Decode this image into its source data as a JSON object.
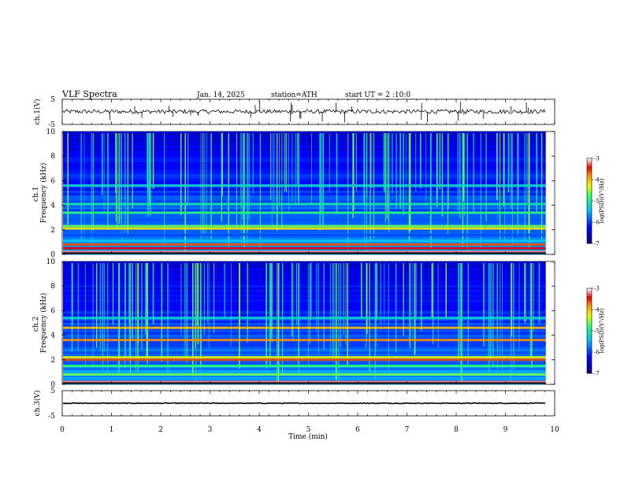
{
  "header": {
    "title": "VLF  Spectra",
    "date": "Jan. 14, 2025",
    "station": "station=ATH",
    "start": "start  UT  =   2  :10:0"
  },
  "chart_data": [
    {
      "type": "line",
      "name": "ch1-waveform",
      "ylabel": "ch.1(V)",
      "ylim": [
        -5,
        5
      ],
      "yticks": [
        "5",
        "-5"
      ],
      "xlim": [
        0,
        10
      ],
      "mean": 0.1,
      "noise_amplitude": 0.8,
      "spike_count": 30,
      "color": "#000000"
    },
    {
      "type": "heatmap",
      "name": "ch1-spectrogram",
      "ylabel": "ch.1\nFrequency  (kHz)",
      "ylim": [
        0,
        10
      ],
      "yticks": [
        "0",
        "2",
        "4",
        "6",
        "8",
        "10"
      ],
      "xlim": [
        0,
        10
      ],
      "data_end_min": 9.82,
      "colorbar": {
        "label": "log(PSD)(V²/Hz)",
        "range": [
          -7,
          -3
        ],
        "ticks": [
          "-3",
          "-4",
          "-5",
          "-6",
          "-7"
        ]
      },
      "bands_khz": [
        {
          "f": 0.2,
          "level": 0.95
        },
        {
          "f": 0.5,
          "level": 0.9
        },
        {
          "f": 0.8,
          "level": 0.85
        },
        {
          "f": 1.1,
          "level": 0.4
        },
        {
          "f": 1.6,
          "level": 0.25
        },
        {
          "f": 2.1,
          "level": 0.7
        },
        {
          "f": 2.3,
          "level": 0.6
        },
        {
          "f": 3.4,
          "level": 0.55
        },
        {
          "f": 4.1,
          "level": 0.5
        },
        {
          "f": 5.6,
          "level": 0.45
        }
      ]
    },
    {
      "type": "heatmap",
      "name": "ch2-spectrogram",
      "ylabel": "ch.2\nFrequency  (kHz)",
      "ylim": [
        0,
        10
      ],
      "yticks": [
        "0",
        "2",
        "4",
        "6",
        "8",
        "10"
      ],
      "xlim": [
        0,
        10
      ],
      "data_end_min": 9.82,
      "colorbar": {
        "label": "log(PSD)(V²/Hz)",
        "range": [
          -7,
          -3
        ],
        "ticks": [
          "-3",
          "-4",
          "-5",
          "-6",
          "-7"
        ]
      },
      "bands_khz": [
        {
          "f": 0.2,
          "level": 0.95
        },
        {
          "f": 0.8,
          "level": 0.6
        },
        {
          "f": 1.5,
          "level": 0.55
        },
        {
          "f": 2.0,
          "level": 0.85
        },
        {
          "f": 2.2,
          "level": 0.7
        },
        {
          "f": 3.6,
          "level": 0.8
        },
        {
          "f": 4.6,
          "level": 0.75
        },
        {
          "f": 5.4,
          "level": 0.45
        }
      ]
    },
    {
      "type": "line",
      "name": "ch3-waveform",
      "ylabel": "ch.3(V)",
      "ylim": [
        -5,
        5
      ],
      "yticks": [
        "5",
        "-5"
      ],
      "xlim": [
        0,
        10
      ],
      "mean": 0.0,
      "noise_amplitude": 0.15,
      "spike_count": 0,
      "color": "#000000"
    }
  ],
  "xaxis": {
    "label": "Time  (min)",
    "ticks": [
      "0",
      "1",
      "2",
      "3",
      "4",
      "5",
      "6",
      "7",
      "8",
      "9",
      "10"
    ],
    "range": [
      0,
      10
    ]
  }
}
